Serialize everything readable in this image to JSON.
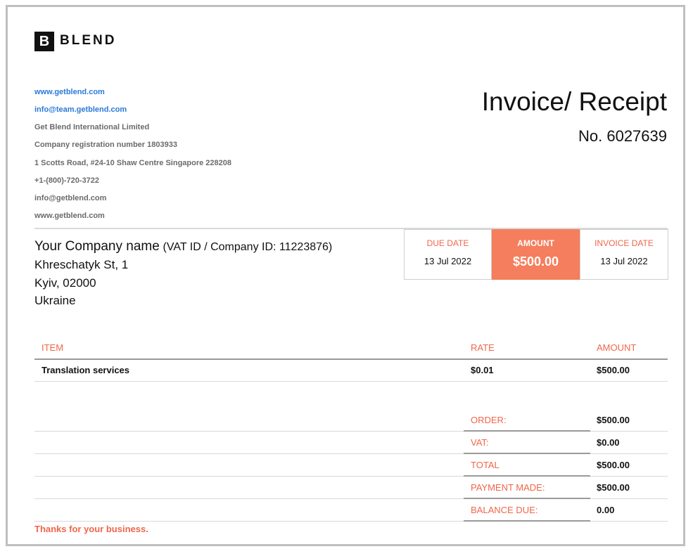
{
  "brand": {
    "logo_letter": "B",
    "logo_text": "BLEND"
  },
  "contact": {
    "website": "www.getblend.com",
    "email_team": "info@team.getblend.com",
    "company_name": "Get Blend International Limited",
    "registration": "Company registration number 1803933",
    "address": "1 Scotts Road, #24-10 Shaw Centre Singapore 228208",
    "phone": "+1-(800)-720-3722",
    "email": "info@getblend.com",
    "website2": "www.getblend.com"
  },
  "invoice": {
    "title": "Invoice/ Receipt",
    "number": "No. 6027639"
  },
  "customer": {
    "name": "Your Company name",
    "vat": "(VAT ID / Company ID: 11223876)",
    "street": "Khreschatyk St, 1",
    "city": "Kyiv, 02000",
    "country": "Ukraine"
  },
  "boxes": {
    "due_label": "DUE DATE",
    "due_value": "13 Jul 2022",
    "amount_label": "AMOUNT",
    "amount_value": "$500.00",
    "invoice_label": "INVOICE DATE",
    "invoice_value": "13 Jul 2022"
  },
  "table": {
    "headers": {
      "item": "ITEM",
      "rate": "RATE",
      "amount": "AMOUNT"
    },
    "rows": [
      {
        "item": "Translation services",
        "rate": "$0.01",
        "amount": "$500.00"
      }
    ]
  },
  "summary": [
    {
      "label": "ORDER:",
      "value": "$500.00"
    },
    {
      "label": "VAT:",
      "value": "$0.00"
    },
    {
      "label": "TOTAL",
      "value": "$500.00"
    },
    {
      "label": "PAYMENT MADE:",
      "value": "$500.00"
    },
    {
      "label": "BALANCE DUE:",
      "value": "0.00"
    }
  ],
  "footer": {
    "thanks": "Thanks for your business."
  },
  "colors": {
    "accent": "#f47e5d",
    "accent_text": "#f0664a",
    "link": "#2a7ad8"
  }
}
